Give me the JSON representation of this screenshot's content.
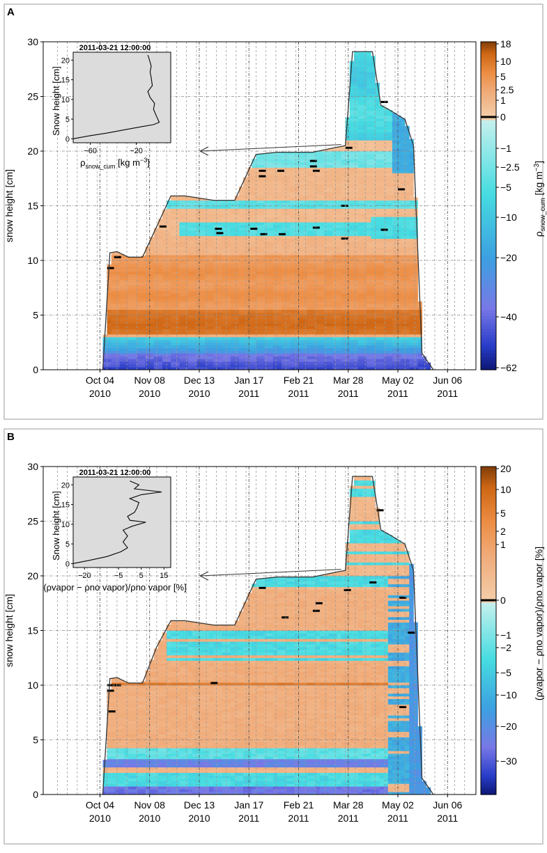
{
  "chart_data": [
    {
      "panel_label": "A",
      "type": "heatmap",
      "ylabel": "snow height [cm]",
      "ylim": [
        0,
        30
      ],
      "yticks": [
        0,
        5,
        10,
        15,
        20,
        25,
        30
      ],
      "xticks": [
        {
          "line1": "Oct 04",
          "line2": "2010",
          "day": 0
        },
        {
          "line1": "Nov 08",
          "line2": "2010",
          "day": 35
        },
        {
          "line1": "Dec 13",
          "line2": "2010",
          "day": 70
        },
        {
          "line1": "Jan 17",
          "line2": "2011",
          "day": 105
        },
        {
          "line1": "Feb 21",
          "line2": "2011",
          "day": 140
        },
        {
          "line1": "Mar 28",
          "line2": "2011",
          "day": 175
        },
        {
          "line1": "May 02",
          "line2": "2011",
          "day": 210
        },
        {
          "line1": "Jun 06",
          "line2": "2011",
          "day": 245
        }
      ],
      "xlim_days": [
        -40,
        265
      ],
      "colorbar": {
        "label_base": "ρ",
        "label_sub": "snow_cum",
        "label_unit": " [kg m",
        "label_sup": "−3",
        "label_end": "]",
        "ticks": [
          "18",
          "10",
          "5",
          "2.5",
          "1",
          "0",
          "−1",
          "−2.5",
          "−5",
          "−10",
          "−20",
          "−40",
          "−62"
        ]
      },
      "snow_height": [
        [
          2,
          0
        ],
        [
          7,
          10.7
        ],
        [
          12,
          10.8
        ],
        [
          20,
          10.3
        ],
        [
          30,
          10.3
        ],
        [
          40,
          13.1
        ],
        [
          50,
          15.9
        ],
        [
          60,
          15.9
        ],
        [
          80,
          15.5
        ],
        [
          95,
          15.5
        ],
        [
          110,
          19.7
        ],
        [
          125,
          19.9
        ],
        [
          150,
          19.9
        ],
        [
          165,
          20.3
        ],
        [
          173,
          20.5
        ],
        [
          178,
          29.1
        ],
        [
          192,
          29.1
        ],
        [
          198,
          24.2
        ],
        [
          205,
          23.7
        ],
        [
          215,
          22.9
        ],
        [
          221,
          20.5
        ],
        [
          227,
          1.5
        ],
        [
          235,
          0
        ]
      ],
      "inset": {
        "title": "2011-03-21 12:00:00",
        "ylabel": "Snow height [cm]",
        "xlabel_base": "ρ",
        "xlabel_sub": "snow_cum",
        "xlabel_unit": " [kg m",
        "xlabel_sup": "−3",
        "xlabel_end": "]",
        "xticks": [
          "−60",
          "−20"
        ],
        "yticks": [
          "0",
          "5",
          "10",
          "15",
          "20"
        ],
        "xlim": [
          -75,
          10
        ],
        "ylim": [
          -1,
          22
        ],
        "profile": [
          [
            -75,
            0
          ],
          [
            -60,
            0.8
          ],
          [
            -45,
            1.5
          ],
          [
            -30,
            2.3
          ],
          [
            -15,
            3.1
          ],
          [
            -5,
            3.6
          ],
          [
            0,
            4.2
          ],
          [
            -2,
            5.5
          ],
          [
            -5,
            7.5
          ],
          [
            -4,
            9
          ],
          [
            -8,
            10.5
          ],
          [
            -10,
            12
          ],
          [
            -6,
            13.5
          ],
          [
            -7,
            15.5
          ],
          [
            -8,
            17
          ],
          [
            -7,
            18.5
          ],
          [
            -9,
            20.5
          ],
          [
            -10,
            21.3
          ]
        ]
      }
    },
    {
      "panel_label": "B",
      "type": "heatmap",
      "ylabel": "snow height [cm]",
      "ylim": [
        0,
        30
      ],
      "yticks": [
        0,
        5,
        10,
        15,
        20,
        25,
        30
      ],
      "xticks": [
        {
          "line1": "Oct 04",
          "line2": "2010",
          "day": 0
        },
        {
          "line1": "Nov 08",
          "line2": "2010",
          "day": 35
        },
        {
          "line1": "Dec 13",
          "line2": "2010",
          "day": 70
        },
        {
          "line1": "Jan 17",
          "line2": "2011",
          "day": 105
        },
        {
          "line1": "Feb 21",
          "line2": "2011",
          "day": 140
        },
        {
          "line1": "Mar 28",
          "line2": "2011",
          "day": 175
        },
        {
          "line1": "May 02",
          "line2": "2011",
          "day": 210
        },
        {
          "line1": "Jun 06",
          "line2": "2011",
          "day": 245
        }
      ],
      "xlim_days": [
        -40,
        265
      ],
      "colorbar": {
        "label_text": "(ρvapor − ρno vapor)/ρno vapor [%]",
        "ticks": [
          "20",
          "10",
          "5",
          "2",
          "1",
          "0",
          "−1",
          "−2",
          "−5",
          "−10",
          "−20",
          "−30"
        ]
      },
      "snow_height": [
        [
          2,
          0
        ],
        [
          7,
          10.6
        ],
        [
          12,
          10.7
        ],
        [
          20,
          10.2
        ],
        [
          30,
          10.2
        ],
        [
          40,
          13.5
        ],
        [
          50,
          15.9
        ],
        [
          60,
          15.9
        ],
        [
          80,
          15.5
        ],
        [
          95,
          15.5
        ],
        [
          110,
          19.7
        ],
        [
          125,
          19.9
        ],
        [
          150,
          19.9
        ],
        [
          165,
          20.3
        ],
        [
          173,
          20.5
        ],
        [
          178,
          29.1
        ],
        [
          192,
          29.1
        ],
        [
          198,
          24.2
        ],
        [
          205,
          23.7
        ],
        [
          215,
          22.9
        ],
        [
          221,
          20.5
        ],
        [
          227,
          1.5
        ],
        [
          235,
          0
        ]
      ],
      "inset": {
        "title": "2011-03-21 12:00:00",
        "ylabel": "Snow height [cm]",
        "xlabel_text": "(ρvapor − ρno vapor)/ρno vapor [%]",
        "xticks": [
          "−20",
          "−5",
          "5",
          "15"
        ],
        "yticks": [
          "0",
          "5",
          "10",
          "15",
          "20"
        ],
        "xlim": [
          -25,
          18
        ],
        "ylim": [
          -1,
          22
        ],
        "profile": [
          [
            -25,
            0
          ],
          [
            -18,
            0.8
          ],
          [
            -10,
            1.8
          ],
          [
            -4,
            3
          ],
          [
            -1,
            4
          ],
          [
            -3,
            5.5
          ],
          [
            -1,
            7
          ],
          [
            -3,
            8.5
          ],
          [
            1,
            9.5
          ],
          [
            7,
            10.5
          ],
          [
            0,
            11
          ],
          [
            -1,
            12
          ],
          [
            2,
            13
          ],
          [
            3,
            14
          ],
          [
            4,
            15.5
          ],
          [
            0,
            16.5
          ],
          [
            5,
            17.5
          ],
          [
            14,
            18.2
          ],
          [
            2,
            19
          ],
          [
            4,
            20
          ],
          [
            0,
            21
          ]
        ]
      }
    }
  ]
}
